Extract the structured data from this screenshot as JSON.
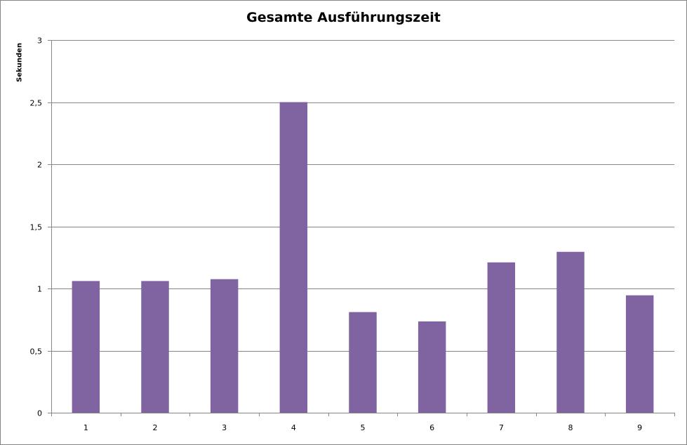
{
  "chart_data": {
    "type": "bar",
    "title": "Gesamte Ausführungszeit",
    "xlabel": "",
    "ylabel": "Sekunden",
    "categories": [
      "1",
      "2",
      "3",
      "4",
      "5",
      "6",
      "7",
      "8",
      "9"
    ],
    "values": [
      1.06,
      1.06,
      1.075,
      2.5,
      0.81,
      0.735,
      1.21,
      1.295,
      0.945
    ],
    "ylim": [
      0,
      3
    ],
    "yticks": [
      "0",
      "0,5",
      "1",
      "1,5",
      "2",
      "2,5",
      "3"
    ],
    "ytick_values": [
      0,
      0.5,
      1,
      1.5,
      2,
      2.5,
      3
    ],
    "grid": true,
    "legend": "none",
    "bar_color": "#8064A2",
    "gridline_color": "#868686"
  }
}
